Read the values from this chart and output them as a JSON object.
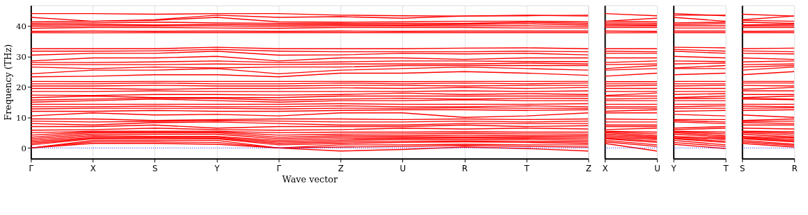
{
  "chart_data": [
    {
      "type": "line",
      "xlabel": "Wave vector",
      "ylabel": "Frequency (THz)",
      "grid": "x",
      "line_style": "solid",
      "categories": [
        "Γ",
        "X",
        "S",
        "Y",
        "Γ",
        "Z",
        "U",
        "R",
        "T",
        "Z"
      ],
      "ylim": [
        -3.5,
        46.7
      ],
      "yticks": [
        0,
        10,
        20,
        30,
        40
      ],
      "ref_lines": [
        {
          "axis": "y",
          "value": 0,
          "color": "#0000ff",
          "line_style": "dotted"
        }
      ],
      "series": [
        {
          "color": "#ff0000",
          "values": [
            0,
            1.5,
            1.5,
            1.2,
            0,
            -1.0,
            -0.5,
            0.3,
            -0.2,
            -1.0
          ]
        },
        {
          "color": "#ff0000",
          "values": [
            0,
            2,
            2,
            1.8,
            0,
            0.3,
            0.5,
            0.8,
            0.5,
            0.3
          ]
        },
        {
          "color": "#ff0000",
          "values": [
            0,
            2.5,
            2.5,
            2.5,
            0,
            1,
            1,
            1.2,
            1,
            1
          ]
        },
        {
          "color": "#ff0000",
          "values": [
            1,
            3,
            3,
            3,
            1,
            1.5,
            1.8,
            2,
            1.8,
            1.5
          ]
        },
        {
          "color": "#ff0000",
          "values": [
            1.5,
            3.2,
            3.3,
            3.2,
            1.5,
            2,
            2.2,
            2.3,
            2.2,
            2
          ]
        },
        {
          "color": "#ff0000",
          "values": [
            2,
            3.5,
            3.5,
            3.5,
            2,
            2.5,
            2.8,
            2.8,
            2.8,
            2.5
          ]
        },
        {
          "color": "#ff0000",
          "values": [
            2.5,
            4,
            3.8,
            3.8,
            2.5,
            3,
            3.2,
            3.3,
            3.2,
            3
          ]
        },
        {
          "color": "#ff0000",
          "values": [
            3,
            4.5,
            4.5,
            4.5,
            3,
            3.5,
            3.6,
            3.6,
            3.6,
            3.5
          ]
        },
        {
          "color": "#ff0000",
          "values": [
            3.5,
            5,
            5,
            5,
            3.5,
            4,
            4,
            4.2,
            4,
            4
          ]
        },
        {
          "color": "#ff0000",
          "values": [
            4.2,
            5.3,
            5.3,
            5.3,
            4.2,
            4.5,
            4.6,
            4.8,
            4.6,
            4.5
          ]
        },
        {
          "color": "#ff0000",
          "values": [
            5,
            5.5,
            5.5,
            5.5,
            5,
            5.2,
            5.2,
            5.3,
            5.2,
            5.2
          ]
        },
        {
          "color": "#ff0000",
          "values": [
            5.8,
            6,
            6.5,
            6,
            5.8,
            6,
            6.5,
            6.2,
            6.5,
            6.2
          ]
        },
        {
          "color": "#ff0000",
          "values": [
            7,
            7,
            7.5,
            6.5,
            7,
            7,
            7,
            7.5,
            7,
            7.3
          ]
        },
        {
          "color": "#ff0000",
          "values": [
            8,
            7.5,
            8.3,
            8.5,
            8,
            7.5,
            7.5,
            8,
            8,
            8
          ]
        },
        {
          "color": "#ff0000",
          "values": [
            8.8,
            8.5,
            8.7,
            9,
            8.8,
            8.5,
            8.5,
            8.8,
            8.5,
            8.8
          ]
        },
        {
          "color": "#ff0000",
          "values": [
            9.5,
            9.5,
            9,
            9.3,
            9.5,
            9.5,
            9.3,
            9.5,
            9.3,
            9.5
          ]
        },
        {
          "color": "#ff0000",
          "values": [
            10.5,
            11.5,
            10.8,
            11,
            10.5,
            11.5,
            11.5,
            10,
            10.5,
            11.5
          ]
        },
        {
          "color": "#ff0000",
          "values": [
            12,
            12,
            12.3,
            12,
            12,
            12.3,
            12.5,
            12.5,
            12.3,
            12.5
          ]
        },
        {
          "color": "#ff0000",
          "values": [
            12.8,
            13,
            13,
            13,
            12.8,
            13,
            13,
            13.2,
            13,
            13
          ]
        },
        {
          "color": "#ff0000",
          "values": [
            13.5,
            13.5,
            13.7,
            13.5,
            13.5,
            13.8,
            13.5,
            13.5,
            13.8,
            13.5
          ]
        },
        {
          "color": "#ff0000",
          "values": [
            14.3,
            14.3,
            14.3,
            14.3,
            14.3,
            14.5,
            14.3,
            14.3,
            14.3,
            14.5
          ]
        },
        {
          "color": "#ff0000",
          "values": [
            15,
            15.5,
            16,
            15.5,
            15,
            15.5,
            15.5,
            15.8,
            15.5,
            15.5
          ]
        },
        {
          "color": "#ff0000",
          "values": [
            15.7,
            16,
            16.3,
            16.2,
            15.7,
            16,
            16.3,
            16,
            16.3,
            16.2
          ]
        },
        {
          "color": "#ff0000",
          "values": [
            16.5,
            17,
            16.5,
            16.5,
            16.5,
            17,
            17,
            17,
            17,
            17
          ]
        },
        {
          "color": "#ff0000",
          "values": [
            17.3,
            17.2,
            17.5,
            17.5,
            17.3,
            17.5,
            18,
            17.5,
            17.8,
            17.5
          ]
        },
        {
          "color": "#ff0000",
          "values": [
            18.5,
            18.5,
            18.7,
            18.5,
            18.5,
            18.5,
            18.5,
            18.7,
            18.5,
            18.7
          ]
        },
        {
          "color": "#ff0000",
          "values": [
            19.5,
            19.5,
            19.2,
            19.5,
            19.5,
            19.7,
            19.5,
            19.8,
            19.5,
            19.8
          ]
        },
        {
          "color": "#ff0000",
          "values": [
            20.3,
            20.3,
            20.5,
            20.3,
            20.3,
            20.5,
            20.5,
            20.3,
            20.5,
            20.5
          ]
        },
        {
          "color": "#ff0000",
          "values": [
            21,
            21,
            21.3,
            21,
            21,
            21.3,
            21,
            21.3,
            21,
            21.3
          ]
        },
        {
          "color": "#ff0000",
          "values": [
            21.8,
            21.7,
            21.8,
            21.8,
            21.8,
            21.8,
            21.7,
            21.8,
            21.8,
            21.8
          ]
        },
        {
          "color": "#ff0000",
          "values": [
            23.3,
            23.5,
            24,
            24,
            23.3,
            24.5,
            24.5,
            25,
            24.5,
            23.8
          ]
        },
        {
          "color": "#ff0000",
          "values": [
            24.3,
            25.5,
            25.5,
            26,
            24.3,
            25.5,
            26,
            26.5,
            26,
            25.5
          ]
        },
        {
          "color": "#ff0000",
          "values": [
            26.5,
            26,
            26.5,
            26.2,
            26.5,
            26.5,
            27,
            27,
            27,
            27
          ]
        },
        {
          "color": "#ff0000",
          "values": [
            27.3,
            27.3,
            27.3,
            27.5,
            27.3,
            27.5,
            27.5,
            27.5,
            27.8,
            27.5
          ]
        },
        {
          "color": "#ff0000",
          "values": [
            28,
            28,
            28.2,
            28.5,
            28,
            28.2,
            28.5,
            28.5,
            28.3,
            28.3
          ]
        },
        {
          "color": "#ff0000",
          "values": [
            28.5,
            29.5,
            29.5,
            30,
            28.5,
            29.5,
            29.5,
            29,
            29.5,
            29.5
          ]
        },
        {
          "color": "#ff0000",
          "values": [
            30.4,
            31,
            31,
            31.7,
            30.4,
            30.5,
            31,
            30.8,
            31,
            30.5
          ]
        },
        {
          "color": "#ff0000",
          "values": [
            31.7,
            31.7,
            31.8,
            32.3,
            31.7,
            31.5,
            31.5,
            31.5,
            31.7,
            31.5
          ]
        },
        {
          "color": "#ff0000",
          "values": [
            32.5,
            32.5,
            32.5,
            33,
            32.5,
            32.5,
            32.5,
            32.7,
            32.8,
            32.5
          ]
        },
        {
          "color": "#ff0000",
          "values": [
            37.8,
            37.7,
            37.8,
            37.8,
            37.8,
            37.8,
            37.8,
            37.8,
            37.8,
            37.8
          ]
        },
        {
          "color": "#ff0000",
          "values": [
            38.2,
            38.3,
            38.2,
            38.3,
            38.2,
            38.3,
            38.2,
            38.3,
            38.3,
            38.3
          ]
        },
        {
          "color": "#ff0000",
          "values": [
            39.2,
            39.5,
            39.5,
            39.3,
            39.2,
            39.5,
            39.5,
            39.5,
            39.3,
            39.3
          ]
        },
        {
          "color": "#ff0000",
          "values": [
            39.8,
            40,
            40,
            40,
            39.8,
            40,
            40,
            40,
            40,
            39.8
          ]
        },
        {
          "color": "#ff0000",
          "values": [
            40.3,
            40.5,
            40.3,
            40.5,
            40.3,
            40.4,
            40.3,
            40.5,
            40.7,
            40.3
          ]
        },
        {
          "color": "#ff0000",
          "values": [
            40.8,
            41,
            41.2,
            41,
            40.8,
            40.8,
            40.8,
            40.8,
            41.2,
            40.8
          ]
        },
        {
          "color": "#ff0000",
          "values": [
            41.3,
            41.5,
            41.8,
            42.8,
            41.3,
            41.2,
            41.3,
            41.5,
            41.5,
            41.3
          ]
        },
        {
          "color": "#ff0000",
          "values": [
            42.8,
            41.5,
            42,
            43.5,
            42.8,
            43,
            42.5,
            43.2,
            43.5,
            43.2
          ]
        },
        {
          "color": "#ff0000",
          "values": [
            44,
            44,
            43.8,
            44,
            44,
            43.5,
            43.3,
            43.2,
            43.3,
            43.5
          ]
        }
      ]
    },
    {
      "type": "line",
      "line_style": "solid",
      "tick_labels": "x",
      "categories": [
        "X",
        "U"
      ],
      "ylim": [
        -3.5,
        46.7
      ],
      "yticks": [
        0,
        10,
        20,
        30,
        40
      ],
      "ref_lines": [
        {
          "axis": "y",
          "value": 0,
          "color": "#0000ff",
          "line_style": "dotted"
        }
      ],
      "series": [
        {
          "color": "#ff0000",
          "values": [
            1.5,
            -1.0
          ]
        },
        {
          "color": "#ff0000",
          "values": [
            2,
            0.5
          ]
        },
        {
          "color": "#ff0000",
          "values": [
            2.5,
            1
          ]
        },
        {
          "color": "#ff0000",
          "values": [
            3,
            1.8
          ]
        },
        {
          "color": "#ff0000",
          "values": [
            3.2,
            2.2
          ]
        },
        {
          "color": "#ff0000",
          "values": [
            3.5,
            2.8
          ]
        },
        {
          "color": "#ff0000",
          "values": [
            4,
            3.2
          ]
        },
        {
          "color": "#ff0000",
          "values": [
            4.5,
            3.6
          ]
        },
        {
          "color": "#ff0000",
          "values": [
            5,
            4
          ]
        },
        {
          "color": "#ff0000",
          "values": [
            5.3,
            4.6
          ]
        },
        {
          "color": "#ff0000",
          "values": [
            5.5,
            5.2
          ]
        },
        {
          "color": "#ff0000",
          "values": [
            6,
            6.5
          ]
        },
        {
          "color": "#ff0000",
          "values": [
            7,
            7
          ]
        },
        {
          "color": "#ff0000",
          "values": [
            7.5,
            7.5
          ]
        },
        {
          "color": "#ff0000",
          "values": [
            8.5,
            8.5
          ]
        },
        {
          "color": "#ff0000",
          "values": [
            9.5,
            9.3
          ]
        },
        {
          "color": "#ff0000",
          "values": [
            11.5,
            11.5
          ]
        },
        {
          "color": "#ff0000",
          "values": [
            12,
            12.5
          ]
        },
        {
          "color": "#ff0000",
          "values": [
            13,
            13
          ]
        },
        {
          "color": "#ff0000",
          "values": [
            13.5,
            13.5
          ]
        },
        {
          "color": "#ff0000",
          "values": [
            14.3,
            14.3
          ]
        },
        {
          "color": "#ff0000",
          "values": [
            15.5,
            15.5
          ]
        },
        {
          "color": "#ff0000",
          "values": [
            16,
            16.3
          ]
        },
        {
          "color": "#ff0000",
          "values": [
            17,
            17
          ]
        },
        {
          "color": "#ff0000",
          "values": [
            17.2,
            18
          ]
        },
        {
          "color": "#ff0000",
          "values": [
            18.5,
            18.5
          ]
        },
        {
          "color": "#ff0000",
          "values": [
            19.5,
            19.5
          ]
        },
        {
          "color": "#ff0000",
          "values": [
            20.3,
            20.5
          ]
        },
        {
          "color": "#ff0000",
          "values": [
            21,
            21
          ]
        },
        {
          "color": "#ff0000",
          "values": [
            21.7,
            21.7
          ]
        },
        {
          "color": "#ff0000",
          "values": [
            23.5,
            24.5
          ]
        },
        {
          "color": "#ff0000",
          "values": [
            25.5,
            26
          ]
        },
        {
          "color": "#ff0000",
          "values": [
            26,
            27
          ]
        },
        {
          "color": "#ff0000",
          "values": [
            27.3,
            27.5
          ]
        },
        {
          "color": "#ff0000",
          "values": [
            28,
            28.5
          ]
        },
        {
          "color": "#ff0000",
          "values": [
            29.5,
            29.5
          ]
        },
        {
          "color": "#ff0000",
          "values": [
            31,
            31
          ]
        },
        {
          "color": "#ff0000",
          "values": [
            31.7,
            31.5
          ]
        },
        {
          "color": "#ff0000",
          "values": [
            32.5,
            32.5
          ]
        },
        {
          "color": "#ff0000",
          "values": [
            37.7,
            37.8
          ]
        },
        {
          "color": "#ff0000",
          "values": [
            38.3,
            38.2
          ]
        },
        {
          "color": "#ff0000",
          "values": [
            39.5,
            39.5
          ]
        },
        {
          "color": "#ff0000",
          "values": [
            40,
            40
          ]
        },
        {
          "color": "#ff0000",
          "values": [
            40.5,
            40.3
          ]
        },
        {
          "color": "#ff0000",
          "values": [
            41,
            40.8
          ]
        },
        {
          "color": "#ff0000",
          "values": [
            41.5,
            41.3
          ]
        },
        {
          "color": "#ff0000",
          "values": [
            41.5,
            42.5
          ]
        },
        {
          "color": "#ff0000",
          "values": [
            44,
            43.3
          ]
        }
      ]
    },
    {
      "type": "line",
      "line_style": "solid",
      "tick_labels": "x",
      "categories": [
        "Y",
        "T"
      ],
      "ylim": [
        -3.5,
        46.7
      ],
      "yticks": [
        0,
        10,
        20,
        30,
        40
      ],
      "ref_lines": [
        {
          "axis": "y",
          "value": 0,
          "color": "#0000ff",
          "line_style": "dotted"
        }
      ],
      "series": [
        {
          "color": "#ff0000",
          "values": [
            1.2,
            -0.2
          ]
        },
        {
          "color": "#ff0000",
          "values": [
            1.8,
            0.5
          ]
        },
        {
          "color": "#ff0000",
          "values": [
            2.5,
            1
          ]
        },
        {
          "color": "#ff0000",
          "values": [
            3,
            1.8
          ]
        },
        {
          "color": "#ff0000",
          "values": [
            3.2,
            2.2
          ]
        },
        {
          "color": "#ff0000",
          "values": [
            3.5,
            2.8
          ]
        },
        {
          "color": "#ff0000",
          "values": [
            3.8,
            3.2
          ]
        },
        {
          "color": "#ff0000",
          "values": [
            4.5,
            3.6
          ]
        },
        {
          "color": "#ff0000",
          "values": [
            5,
            4
          ]
        },
        {
          "color": "#ff0000",
          "values": [
            5.3,
            4.6
          ]
        },
        {
          "color": "#ff0000",
          "values": [
            5.5,
            5.2
          ]
        },
        {
          "color": "#ff0000",
          "values": [
            6,
            6.5
          ]
        },
        {
          "color": "#ff0000",
          "values": [
            6.5,
            7
          ]
        },
        {
          "color": "#ff0000",
          "values": [
            8.5,
            8
          ]
        },
        {
          "color": "#ff0000",
          "values": [
            9,
            8.5
          ]
        },
        {
          "color": "#ff0000",
          "values": [
            9.3,
            9.3
          ]
        },
        {
          "color": "#ff0000",
          "values": [
            11,
            10.5
          ]
        },
        {
          "color": "#ff0000",
          "values": [
            12,
            12.3
          ]
        },
        {
          "color": "#ff0000",
          "values": [
            13,
            13
          ]
        },
        {
          "color": "#ff0000",
          "values": [
            13.5,
            13.8
          ]
        },
        {
          "color": "#ff0000",
          "values": [
            14.3,
            14.3
          ]
        },
        {
          "color": "#ff0000",
          "values": [
            15.5,
            15.5
          ]
        },
        {
          "color": "#ff0000",
          "values": [
            16.2,
            16.3
          ]
        },
        {
          "color": "#ff0000",
          "values": [
            16.5,
            17
          ]
        },
        {
          "color": "#ff0000",
          "values": [
            17.5,
            17.8
          ]
        },
        {
          "color": "#ff0000",
          "values": [
            18.5,
            18.5
          ]
        },
        {
          "color": "#ff0000",
          "values": [
            19.5,
            19.5
          ]
        },
        {
          "color": "#ff0000",
          "values": [
            20.3,
            20.5
          ]
        },
        {
          "color": "#ff0000",
          "values": [
            21,
            21
          ]
        },
        {
          "color": "#ff0000",
          "values": [
            21.8,
            21.8
          ]
        },
        {
          "color": "#ff0000",
          "values": [
            24,
            24.5
          ]
        },
        {
          "color": "#ff0000",
          "values": [
            26,
            26
          ]
        },
        {
          "color": "#ff0000",
          "values": [
            26.2,
            27
          ]
        },
        {
          "color": "#ff0000",
          "values": [
            27.5,
            27.8
          ]
        },
        {
          "color": "#ff0000",
          "values": [
            28.5,
            28.3
          ]
        },
        {
          "color": "#ff0000",
          "values": [
            30,
            29.5
          ]
        },
        {
          "color": "#ff0000",
          "values": [
            31.7,
            31
          ]
        },
        {
          "color": "#ff0000",
          "values": [
            32.3,
            31.7
          ]
        },
        {
          "color": "#ff0000",
          "values": [
            33,
            32.8
          ]
        },
        {
          "color": "#ff0000",
          "values": [
            37.8,
            37.8
          ]
        },
        {
          "color": "#ff0000",
          "values": [
            38.3,
            38.3
          ]
        },
        {
          "color": "#ff0000",
          "values": [
            39.3,
            39.3
          ]
        },
        {
          "color": "#ff0000",
          "values": [
            40,
            40
          ]
        },
        {
          "color": "#ff0000",
          "values": [
            40.5,
            40.7
          ]
        },
        {
          "color": "#ff0000",
          "values": [
            41,
            41.2
          ]
        },
        {
          "color": "#ff0000",
          "values": [
            42.8,
            41.5
          ]
        },
        {
          "color": "#ff0000",
          "values": [
            43.5,
            43.5
          ]
        },
        {
          "color": "#ff0000",
          "values": [
            44,
            43.3
          ]
        }
      ]
    },
    {
      "type": "line",
      "line_style": "solid",
      "tick_labels": "x",
      "categories": [
        "S",
        "R"
      ],
      "ylim": [
        -3.5,
        46.7
      ],
      "yticks": [
        0,
        10,
        20,
        30,
        40
      ],
      "ref_lines": [
        {
          "axis": "y",
          "value": 0,
          "color": "#0000ff",
          "line_style": "dotted"
        }
      ],
      "series": [
        {
          "color": "#ff0000",
          "values": [
            1.5,
            0.3
          ]
        },
        {
          "color": "#ff0000",
          "values": [
            2,
            0.8
          ]
        },
        {
          "color": "#ff0000",
          "values": [
            2.5,
            1.2
          ]
        },
        {
          "color": "#ff0000",
          "values": [
            3,
            2
          ]
        },
        {
          "color": "#ff0000",
          "values": [
            3.3,
            2.3
          ]
        },
        {
          "color": "#ff0000",
          "values": [
            3.5,
            2.8
          ]
        },
        {
          "color": "#ff0000",
          "values": [
            3.8,
            3.3
          ]
        },
        {
          "color": "#ff0000",
          "values": [
            4.5,
            3.6
          ]
        },
        {
          "color": "#ff0000",
          "values": [
            5,
            4.2
          ]
        },
        {
          "color": "#ff0000",
          "values": [
            5.3,
            4.8
          ]
        },
        {
          "color": "#ff0000",
          "values": [
            5.5,
            5.3
          ]
        },
        {
          "color": "#ff0000",
          "values": [
            6.5,
            6.2
          ]
        },
        {
          "color": "#ff0000",
          "values": [
            7.5,
            7.5
          ]
        },
        {
          "color": "#ff0000",
          "values": [
            8.3,
            8
          ]
        },
        {
          "color": "#ff0000",
          "values": [
            8.7,
            8.8
          ]
        },
        {
          "color": "#ff0000",
          "values": [
            9,
            9.5
          ]
        },
        {
          "color": "#ff0000",
          "values": [
            10.8,
            10
          ]
        },
        {
          "color": "#ff0000",
          "values": [
            12.3,
            12.5
          ]
        },
        {
          "color": "#ff0000",
          "values": [
            13,
            13.2
          ]
        },
        {
          "color": "#ff0000",
          "values": [
            13.7,
            13.5
          ]
        },
        {
          "color": "#ff0000",
          "values": [
            14.3,
            14.3
          ]
        },
        {
          "color": "#ff0000",
          "values": [
            16,
            15.8
          ]
        },
        {
          "color": "#ff0000",
          "values": [
            16.3,
            16
          ]
        },
        {
          "color": "#ff0000",
          "values": [
            16.5,
            17
          ]
        },
        {
          "color": "#ff0000",
          "values": [
            17.5,
            17.5
          ]
        },
        {
          "color": "#ff0000",
          "values": [
            18.7,
            18.7
          ]
        },
        {
          "color": "#ff0000",
          "values": [
            19.2,
            19.8
          ]
        },
        {
          "color": "#ff0000",
          "values": [
            20.5,
            20.3
          ]
        },
        {
          "color": "#ff0000",
          "values": [
            21.3,
            21.3
          ]
        },
        {
          "color": "#ff0000",
          "values": [
            21.8,
            21.8
          ]
        },
        {
          "color": "#ff0000",
          "values": [
            24,
            25
          ]
        },
        {
          "color": "#ff0000",
          "values": [
            25.5,
            26.5
          ]
        },
        {
          "color": "#ff0000",
          "values": [
            26.5,
            27
          ]
        },
        {
          "color": "#ff0000",
          "values": [
            27.3,
            27.5
          ]
        },
        {
          "color": "#ff0000",
          "values": [
            28.2,
            28.5
          ]
        },
        {
          "color": "#ff0000",
          "values": [
            29.5,
            29
          ]
        },
        {
          "color": "#ff0000",
          "values": [
            31,
            30.8
          ]
        },
        {
          "color": "#ff0000",
          "values": [
            31.8,
            31.5
          ]
        },
        {
          "color": "#ff0000",
          "values": [
            32.5,
            32.7
          ]
        },
        {
          "color": "#ff0000",
          "values": [
            37.8,
            37.8
          ]
        },
        {
          "color": "#ff0000",
          "values": [
            38.2,
            38.3
          ]
        },
        {
          "color": "#ff0000",
          "values": [
            39.5,
            39.5
          ]
        },
        {
          "color": "#ff0000",
          "values": [
            40,
            40
          ]
        },
        {
          "color": "#ff0000",
          "values": [
            40.3,
            40.5
          ]
        },
        {
          "color": "#ff0000",
          "values": [
            41.2,
            40.8
          ]
        },
        {
          "color": "#ff0000",
          "values": [
            41.8,
            41.5
          ]
        },
        {
          "color": "#ff0000",
          "values": [
            42,
            43.2
          ]
        },
        {
          "color": "#ff0000",
          "values": [
            43.8,
            43.2
          ]
        }
      ]
    }
  ]
}
